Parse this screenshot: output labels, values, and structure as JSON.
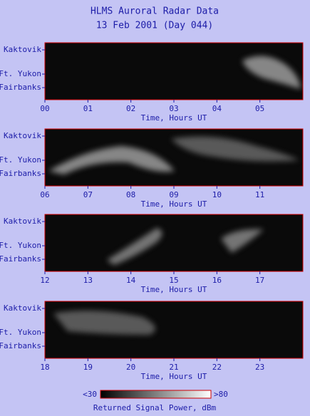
{
  "title": [
    "HLMS Auroral Radar Data",
    "13 Feb 2001 (Day 044)"
  ],
  "chart_data": [
    {
      "type": "heatmap",
      "x_label": "Time, Hours UT",
      "y_labels": [
        "Kaktovik",
        "Ft. Yukon",
        "Fairbanks"
      ],
      "xlim": [
        0,
        6
      ],
      "xticks": [
        {
          "value": 0,
          "label": "00"
        },
        {
          "value": 1,
          "label": "01"
        },
        {
          "value": 2,
          "label": "02"
        },
        {
          "value": 3,
          "label": "03"
        },
        {
          "value": 4,
          "label": "04"
        },
        {
          "value": 5,
          "label": "05"
        }
      ]
    },
    {
      "type": "heatmap",
      "x_label": "Time, Hours UT",
      "y_labels": [
        "Kaktovik",
        "Ft. Yukon",
        "Fairbanks"
      ],
      "xlim": [
        6,
        12
      ],
      "xticks": [
        {
          "value": 6,
          "label": "06"
        },
        {
          "value": 7,
          "label": "07"
        },
        {
          "value": 8,
          "label": "08"
        },
        {
          "value": 9,
          "label": "09"
        },
        10,
        11
      ]
    },
    {
      "type": "heatmap",
      "x_label": "Time, Hours UT",
      "y_labels": [
        "Kaktovik",
        "Ft. Yukon",
        "Fairbanks"
      ],
      "xlim": [
        12,
        18
      ],
      "xticks": [
        12,
        13,
        14,
        15,
        16,
        17
      ]
    },
    {
      "type": "heatmap",
      "x_label": "Time, Hours UT",
      "y_labels": [
        "Kaktovik",
        "Ft. Yukon",
        "Fairbanks"
      ],
      "xlim": [
        18,
        24
      ],
      "xticks": [
        18,
        19,
        20,
        21,
        22,
        23
      ]
    }
  ],
  "colorbar": {
    "ticks": [
      {
        "value": 30,
        "label": "<30"
      },
      {
        "value": 80,
        "label": ">80"
      }
    ],
    "label": "Returned Signal Power, dBm"
  }
}
